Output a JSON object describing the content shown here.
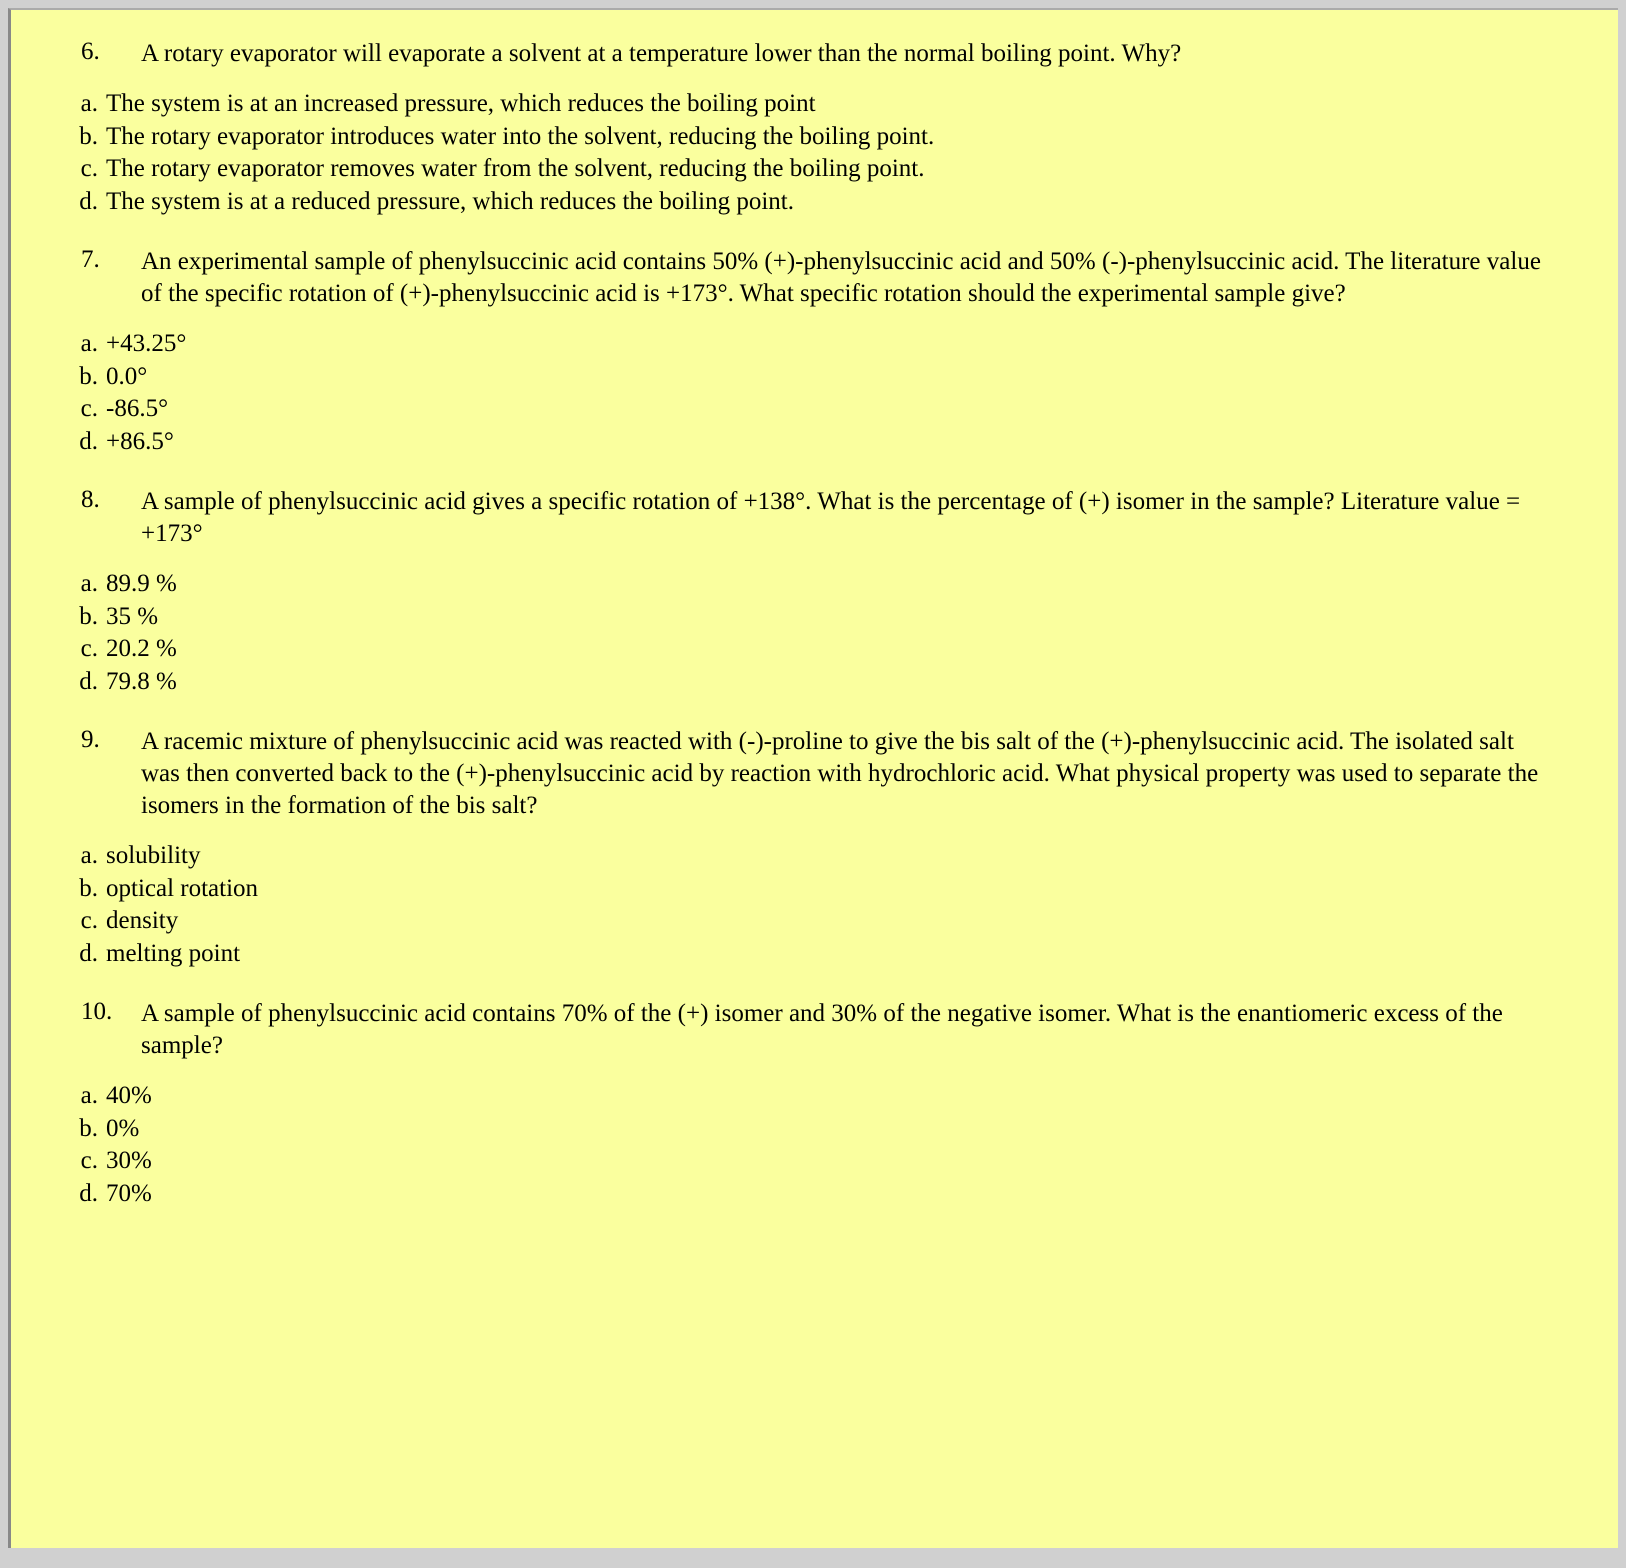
{
  "page": {
    "background_color": "#faff9e",
    "text_color": "#000000",
    "font_family": "Times New Roman",
    "base_font_size_pt": 18
  },
  "questions": [
    {
      "number": "6.",
      "text": "A rotary evaporator will evaporate a solvent at a temperature lower than the normal boiling point. Why?",
      "options": [
        {
          "label": "a.",
          "text": "The system is at an increased pressure, which reduces the boiling point"
        },
        {
          "label": "b.",
          "text": "The rotary evaporator introduces water into the solvent, reducing the boiling point."
        },
        {
          "label": "c.",
          "text": "The rotary evaporator removes water from the solvent, reducing the boiling point."
        },
        {
          "label": "d.",
          "text": "The system is at a reduced pressure, which reduces the boiling point."
        }
      ]
    },
    {
      "number": "7.",
      "text": "An experimental sample of phenylsuccinic acid contains 50% (+)-phenylsuccinic acid and 50% (-)-phenylsuccinic acid.  The literature value of the specific rotation of (+)-phenylsuccinic acid is +173°.  What specific rotation should the experimental sample give?",
      "options": [
        {
          "label": "a.",
          "text": "+43.25°"
        },
        {
          "label": "b.",
          "text": "0.0°"
        },
        {
          "label": "c.",
          "text": "-86.5°"
        },
        {
          "label": "d.",
          "text": "+86.5°"
        }
      ]
    },
    {
      "number": "8.",
      "text": "A sample of phenylsuccinic acid gives a specific rotation of +138°.  What is the percentage of (+) isomer in the sample?  Literature value = +173°",
      "options": [
        {
          "label": "a.",
          "text": "89.9 %"
        },
        {
          "label": "b.",
          "text": "35 %"
        },
        {
          "label": "c.",
          "text": "20.2 %"
        },
        {
          "label": "d.",
          "text": "79.8 %"
        }
      ]
    },
    {
      "number": "9.",
      "text": "A racemic mixture of phenylsuccinic acid was reacted with (-)-proline to give the bis salt of the (+)-phenylsuccinic acid.  The isolated salt was then converted back to the (+)-phenylsuccinic acid by reaction with hydrochloric acid.  What physical property was used to separate the isomers in the formation of the bis salt?",
      "options": [
        {
          "label": "a.",
          "text": "solubility"
        },
        {
          "label": "b.",
          "text": "optical rotation"
        },
        {
          "label": "c.",
          "text": "density"
        },
        {
          "label": "d.",
          "text": "melting point"
        }
      ]
    },
    {
      "number": "10.",
      "text": "A sample of phenylsuccinic acid contains 70% of the (+) isomer and 30% of the negative isomer. What is the enantiomeric excess of the sample?",
      "options": [
        {
          "label": "a.",
          "text": "40%"
        },
        {
          "label": "b.",
          "text": "0%"
        },
        {
          "label": "c.",
          "text": "30%"
        },
        {
          "label": "d.",
          "text": "70%"
        }
      ]
    }
  ]
}
